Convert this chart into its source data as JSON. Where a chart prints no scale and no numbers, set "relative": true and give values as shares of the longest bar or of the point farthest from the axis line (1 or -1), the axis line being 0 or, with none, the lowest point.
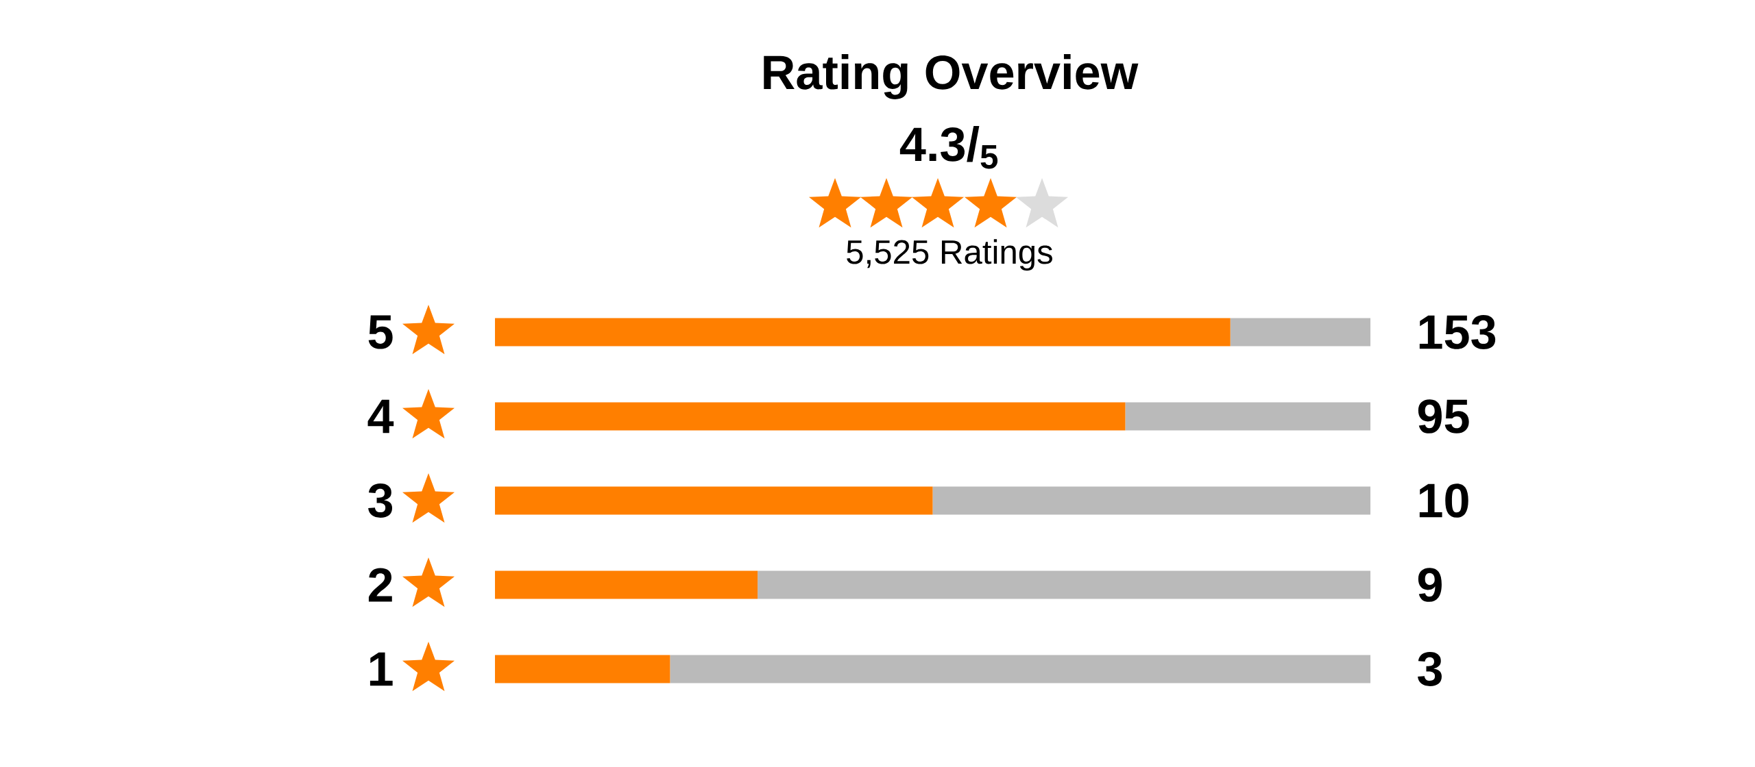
{
  "chart_data": {
    "type": "bar",
    "orientation": "horizontal",
    "stacked": true,
    "relative": true,
    "title": "Rating Overview",
    "subtitle": "4.3/$_{5}$",
    "annotations": [
      "5,525 Ratings",
      "153",
      "95",
      "10",
      "9",
      "3"
    ],
    "categories": [
      "5",
      "4",
      "3",
      "2",
      "1"
    ],
    "series": [
      {
        "color": "#ff7f00",
        "values": [
          0.84,
          0.72,
          0.5,
          0.3,
          0.2
        ]
      },
      {
        "color": "#bababa",
        "values": [
          0.16,
          0.28,
          0.5,
          0.7,
          0.8
        ]
      }
    ]
  }
}
